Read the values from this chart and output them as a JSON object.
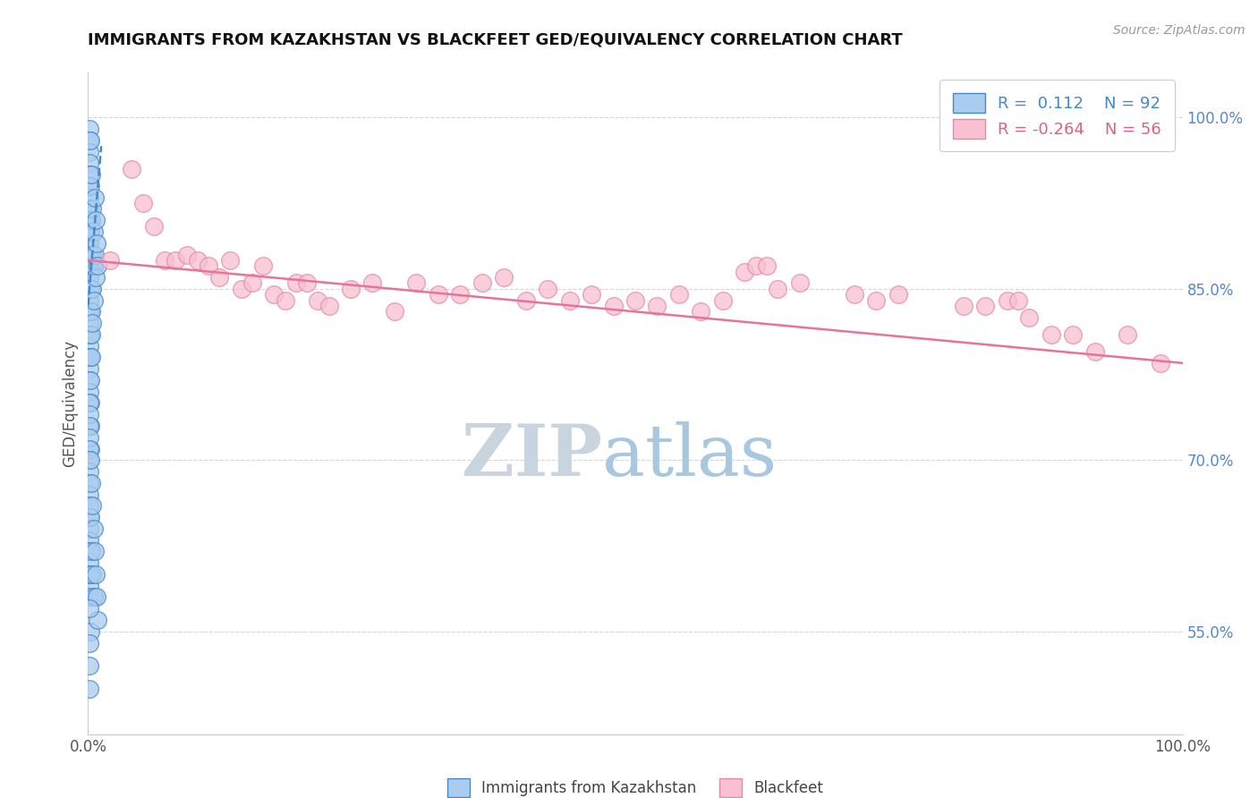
{
  "title": "IMMIGRANTS FROM KAZAKHSTAN VS BLACKFEET GED/EQUIVALENCY CORRELATION CHART",
  "source_text": "Source: ZipAtlas.com",
  "ylabel": "GED/Equivalency",
  "xlim": [
    0.0,
    1.0
  ],
  "ylim": [
    0.46,
    1.04
  ],
  "right_yticks": [
    1.0,
    0.85,
    0.7,
    0.55
  ],
  "right_yticklabels": [
    "100.0%",
    "85.0%",
    "70.0%",
    "55.0%"
  ],
  "blue_color": "#aaccee",
  "blue_edge": "#4488cc",
  "pink_color": "#f8c0d0",
  "pink_edge": "#e888a8",
  "blue_line_color": "#4488cc",
  "pink_line_color": "#e8729a",
  "watermark_zip": "ZIP",
  "watermark_atlas": "atlas",
  "watermark_zip_color": "#c8d8e8",
  "watermark_atlas_color": "#b8d0e8",
  "grid_color": "#cccccc",
  "blue_scatter_x": [
    0.001,
    0.001,
    0.001,
    0.001,
    0.001,
    0.001,
    0.001,
    0.001,
    0.001,
    0.001,
    0.001,
    0.001,
    0.001,
    0.001,
    0.001,
    0.001,
    0.001,
    0.001,
    0.001,
    0.001,
    0.001,
    0.001,
    0.001,
    0.001,
    0.002,
    0.002,
    0.002,
    0.002,
    0.002,
    0.002,
    0.002,
    0.002,
    0.002,
    0.002,
    0.002,
    0.002,
    0.003,
    0.003,
    0.003,
    0.003,
    0.003,
    0.003,
    0.003,
    0.004,
    0.004,
    0.004,
    0.004,
    0.005,
    0.005,
    0.005,
    0.006,
    0.006,
    0.007,
    0.007,
    0.008,
    0.009,
    0.001,
    0.001,
    0.001,
    0.001,
    0.001,
    0.001,
    0.001,
    0.001,
    0.001,
    0.001,
    0.001,
    0.001,
    0.001,
    0.001,
    0.001,
    0.001,
    0.001,
    0.001,
    0.002,
    0.002,
    0.002,
    0.002,
    0.003,
    0.003,
    0.004,
    0.004,
    0.005,
    0.005,
    0.006,
    0.007,
    0.008,
    0.009,
    0.001,
    0.001,
    0.001,
    0.001
  ],
  "blue_scatter_y": [
    0.99,
    0.98,
    0.97,
    0.96,
    0.95,
    0.94,
    0.93,
    0.92,
    0.91,
    0.9,
    0.89,
    0.88,
    0.87,
    0.86,
    0.85,
    0.84,
    0.83,
    0.82,
    0.81,
    0.8,
    0.79,
    0.78,
    0.77,
    0.76,
    0.98,
    0.94,
    0.9,
    0.87,
    0.85,
    0.83,
    0.81,
    0.79,
    0.77,
    0.75,
    0.73,
    0.71,
    0.95,
    0.91,
    0.88,
    0.85,
    0.83,
    0.81,
    0.79,
    0.92,
    0.88,
    0.85,
    0.82,
    0.9,
    0.87,
    0.84,
    0.93,
    0.88,
    0.91,
    0.86,
    0.89,
    0.87,
    0.75,
    0.74,
    0.73,
    0.72,
    0.71,
    0.7,
    0.69,
    0.68,
    0.67,
    0.66,
    0.65,
    0.64,
    0.63,
    0.62,
    0.61,
    0.6,
    0.59,
    0.58,
    0.7,
    0.65,
    0.6,
    0.55,
    0.68,
    0.62,
    0.66,
    0.6,
    0.64,
    0.58,
    0.62,
    0.6,
    0.58,
    0.56,
    0.57,
    0.54,
    0.52,
    0.5
  ],
  "pink_scatter_x": [
    0.02,
    0.04,
    0.05,
    0.06,
    0.07,
    0.08,
    0.09,
    0.1,
    0.11,
    0.12,
    0.13,
    0.14,
    0.15,
    0.16,
    0.17,
    0.18,
    0.19,
    0.2,
    0.21,
    0.22,
    0.24,
    0.26,
    0.28,
    0.3,
    0.32,
    0.34,
    0.36,
    0.38,
    0.4,
    0.42,
    0.44,
    0.46,
    0.48,
    0.5,
    0.52,
    0.54,
    0.56,
    0.58,
    0.6,
    0.61,
    0.62,
    0.63,
    0.65,
    0.7,
    0.72,
    0.74,
    0.8,
    0.82,
    0.84,
    0.85,
    0.86,
    0.88,
    0.9,
    0.92,
    0.95,
    0.98
  ],
  "pink_scatter_y": [
    0.875,
    0.955,
    0.925,
    0.905,
    0.875,
    0.875,
    0.88,
    0.875,
    0.87,
    0.86,
    0.875,
    0.85,
    0.855,
    0.87,
    0.845,
    0.84,
    0.855,
    0.855,
    0.84,
    0.835,
    0.85,
    0.855,
    0.83,
    0.855,
    0.845,
    0.845,
    0.855,
    0.86,
    0.84,
    0.85,
    0.84,
    0.845,
    0.835,
    0.84,
    0.835,
    0.845,
    0.83,
    0.84,
    0.865,
    0.87,
    0.87,
    0.85,
    0.855,
    0.845,
    0.84,
    0.845,
    0.835,
    0.835,
    0.84,
    0.84,
    0.825,
    0.81,
    0.81,
    0.795,
    0.81,
    0.785
  ],
  "blue_trend_x0": 0.0,
  "blue_trend_x1": 0.012,
  "blue_trend_y0": 0.835,
  "blue_trend_y1": 0.975,
  "pink_trend_x0": 0.0,
  "pink_trend_x1": 1.0,
  "pink_trend_y0": 0.875,
  "pink_trend_y1": 0.785
}
